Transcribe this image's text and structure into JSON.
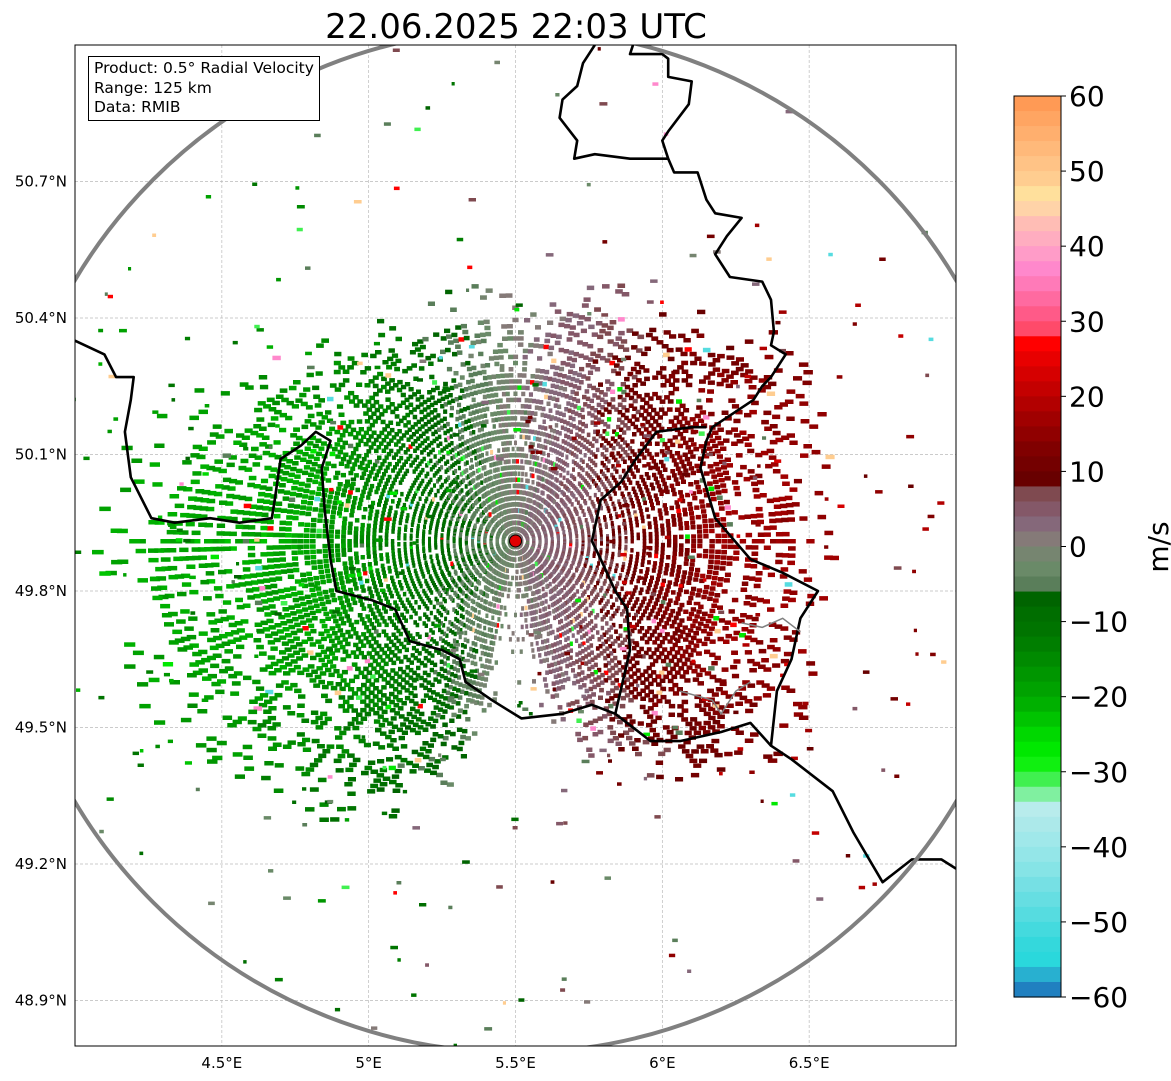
{
  "chart_data": {
    "type": "heatmap",
    "title": "22.06.2025 22:03 UTC",
    "xlabel": "",
    "ylabel": "",
    "xlim": [
      4.0,
      7.0
    ],
    "ylim": [
      48.8,
      51.0
    ],
    "grid": true,
    "x_ticks": [
      {
        "value": 4.5,
        "label": "4.5°E"
      },
      {
        "value": 5.0,
        "label": "5°E"
      },
      {
        "value": 5.5,
        "label": "5.5°E"
      },
      {
        "value": 6.0,
        "label": "6°E"
      },
      {
        "value": 6.5,
        "label": "6.5°E"
      }
    ],
    "y_ticks": [
      {
        "value": 50.7,
        "label": "50.7°N"
      },
      {
        "value": 50.4,
        "label": "50.4°N"
      },
      {
        "value": 50.1,
        "label": "50.1°N"
      },
      {
        "value": 49.8,
        "label": "49.8°N"
      },
      {
        "value": 49.5,
        "label": "49.5°N"
      },
      {
        "value": 49.2,
        "label": "49.2°N"
      },
      {
        "value": 48.9,
        "label": "48.9°N"
      }
    ],
    "info_box": [
      "Product: 0.5° Radial Velocity",
      "Range: 125 km",
      "Data: RMIB"
    ],
    "radar_site": {
      "lon": 5.5,
      "lat": 49.91
    },
    "range_km": 125,
    "colorbar": {
      "label": "m/s",
      "range": [
        -60,
        60
      ],
      "ticks": [
        {
          "value": 60,
          "label": "60"
        },
        {
          "value": 50,
          "label": "50"
        },
        {
          "value": 40,
          "label": "40"
        },
        {
          "value": 30,
          "label": "30"
        },
        {
          "value": 20,
          "label": "20"
        },
        {
          "value": 10,
          "label": "10"
        },
        {
          "value": 0,
          "label": "0"
        },
        {
          "value": -10,
          "label": "−10"
        },
        {
          "value": -20,
          "label": "−20"
        },
        {
          "value": -30,
          "label": "−30"
        },
        {
          "value": -40,
          "label": "−40"
        },
        {
          "value": -50,
          "label": "−50"
        },
        {
          "value": -60,
          "label": "−60"
        }
      ],
      "bins": [
        [
          58,
          60,
          "#ff9a55"
        ],
        [
          56,
          58,
          "#ffa562"
        ],
        [
          54,
          56,
          "#ffaf6e"
        ],
        [
          52,
          54,
          "#ffb97a"
        ],
        [
          50,
          52,
          "#ffc386"
        ],
        [
          48,
          50,
          "#ffcd90"
        ],
        [
          46,
          48,
          "#ffe09c"
        ],
        [
          44,
          46,
          "#ffd3a8"
        ],
        [
          42,
          44,
          "#ffbdb5"
        ],
        [
          40,
          42,
          "#ffadc0"
        ],
        [
          38,
          40,
          "#ff9cc8"
        ],
        [
          36,
          38,
          "#ff88cc"
        ],
        [
          34,
          36,
          "#ff7ab8"
        ],
        [
          32,
          34,
          "#ff6aa0"
        ],
        [
          30,
          32,
          "#ff5a88"
        ],
        [
          28,
          30,
          "#ff4a6a"
        ],
        [
          26,
          28,
          "#ff0000"
        ],
        [
          24,
          26,
          "#e80000"
        ],
        [
          22,
          24,
          "#d60000"
        ],
        [
          20,
          22,
          "#c40000"
        ],
        [
          18,
          20,
          "#b20000"
        ],
        [
          16,
          18,
          "#a00000"
        ],
        [
          14,
          16,
          "#900000"
        ],
        [
          12,
          14,
          "#800000"
        ],
        [
          10,
          12,
          "#740000"
        ],
        [
          8,
          10,
          "#680000"
        ],
        [
          6,
          8,
          "#7f4a50"
        ],
        [
          4,
          6,
          "#845868"
        ],
        [
          2,
          4,
          "#85687a"
        ],
        [
          0,
          2,
          "#857a78"
        ],
        [
          -2,
          0,
          "#768570"
        ],
        [
          -4,
          -2,
          "#6a8a68"
        ],
        [
          -6,
          -4,
          "#5a7e5a"
        ],
        [
          -8,
          -6,
          "#006400"
        ],
        [
          -10,
          -8,
          "#006e00"
        ],
        [
          -12,
          -10,
          "#007400"
        ],
        [
          -14,
          -12,
          "#007e00"
        ],
        [
          -16,
          -14,
          "#008a00"
        ],
        [
          -18,
          -16,
          "#009600"
        ],
        [
          -20,
          -18,
          "#00a200"
        ],
        [
          -22,
          -20,
          "#00b000"
        ],
        [
          -24,
          -22,
          "#00c400"
        ],
        [
          -26,
          -24,
          "#00d800"
        ],
        [
          -28,
          -26,
          "#00e800"
        ],
        [
          -30,
          -28,
          "#10f010"
        ],
        [
          -32,
          -30,
          "#40f050"
        ],
        [
          -34,
          -32,
          "#80f0a0"
        ],
        [
          -36,
          -34,
          "#b8ecec"
        ],
        [
          -38,
          -36,
          "#ace9ea"
        ],
        [
          -40,
          -38,
          "#a0e8ea"
        ],
        [
          -42,
          -40,
          "#94e6e8"
        ],
        [
          -44,
          -42,
          "#86e4e6"
        ],
        [
          -46,
          -44,
          "#76e0e4"
        ],
        [
          -48,
          -46,
          "#66dee2"
        ],
        [
          -50,
          -48,
          "#56dce0"
        ],
        [
          -52,
          -50,
          "#44dade"
        ],
        [
          -54,
          -52,
          "#34d8dc"
        ],
        [
          -56,
          -54,
          "#2ad8dc"
        ],
        [
          -58,
          -56,
          "#28b0d0"
        ],
        [
          -60,
          -58,
          "#2080c0"
        ]
      ]
    },
    "echo_field": {
      "velocity_model": "v = vmax * sin(azimuth)",
      "vmax_mps": 20,
      "extent_km_by_azimuth": [
        [
          0,
          55
        ],
        [
          30,
          60
        ],
        [
          45,
          68
        ],
        [
          60,
          75
        ],
        [
          90,
          68
        ],
        [
          120,
          72
        ],
        [
          135,
          72
        ],
        [
          150,
          60
        ],
        [
          165,
          45
        ],
        [
          180,
          30
        ],
        [
          195,
          55
        ],
        [
          210,
          72
        ],
        [
          225,
          75
        ],
        [
          240,
          85
        ],
        [
          255,
          88
        ],
        [
          270,
          90
        ],
        [
          285,
          85
        ],
        [
          300,
          70
        ],
        [
          315,
          62
        ],
        [
          330,
          55
        ],
        [
          345,
          55
        ],
        [
          360,
          55
        ]
      ]
    },
    "borders": [
      {
        "style": "country",
        "coords": [
          [
            4.0,
            50.35
          ],
          [
            4.1,
            50.32
          ],
          [
            4.14,
            50.27
          ],
          [
            4.2,
            50.27
          ],
          [
            4.19,
            50.22
          ],
          [
            4.17,
            50.15
          ],
          [
            4.19,
            50.05
          ],
          [
            4.26,
            49.96
          ],
          [
            4.34,
            49.95
          ],
          [
            4.46,
            49.96
          ],
          [
            4.56,
            49.95
          ],
          [
            4.67,
            49.96
          ],
          [
            4.68,
            50.0
          ],
          [
            4.7,
            50.09
          ],
          [
            4.77,
            50.12
          ],
          [
            4.82,
            50.15
          ],
          [
            4.87,
            50.13
          ],
          [
            4.84,
            50.07
          ],
          [
            4.85,
            49.98
          ],
          [
            4.87,
            49.87
          ],
          [
            4.89,
            49.8
          ],
          [
            5.01,
            49.78
          ],
          [
            5.09,
            49.76
          ],
          [
            5.14,
            49.69
          ],
          [
            5.25,
            49.67
          ],
          [
            5.31,
            49.65
          ],
          [
            5.33,
            49.6
          ],
          [
            5.42,
            49.56
          ],
          [
            5.52,
            49.52
          ],
          [
            5.66,
            49.53
          ],
          [
            5.76,
            49.55
          ],
          [
            5.84,
            49.53
          ],
          [
            5.96,
            49.47
          ],
          [
            6.06,
            49.47
          ],
          [
            6.2,
            49.49
          ],
          [
            6.3,
            49.51
          ],
          [
            6.37,
            49.46
          ],
          [
            6.44,
            49.43
          ],
          [
            6.58,
            49.36
          ],
          [
            6.65,
            49.27
          ],
          [
            6.75,
            49.16
          ],
          [
            6.85,
            49.21
          ],
          [
            6.95,
            49.21
          ],
          [
            7.0,
            49.19
          ]
        ]
      },
      {
        "style": "country",
        "coords": [
          [
            5.77,
            51.0
          ],
          [
            5.73,
            50.96
          ],
          [
            5.71,
            50.91
          ],
          [
            5.66,
            50.88
          ],
          [
            5.65,
            50.84
          ],
          [
            5.71,
            50.79
          ],
          [
            5.7,
            50.75
          ],
          [
            5.77,
            50.76
          ],
          [
            5.89,
            50.75
          ],
          [
            6.02,
            50.75
          ]
        ]
      },
      {
        "style": "country",
        "coords": [
          [
            5.9,
            51.0
          ],
          [
            5.89,
            50.98
          ],
          [
            6.0,
            50.98
          ],
          [
            6.02,
            50.97
          ],
          [
            6.02,
            50.93
          ],
          [
            6.1,
            50.92
          ],
          [
            6.09,
            50.87
          ],
          [
            6.02,
            50.81
          ],
          [
            6.0,
            50.79
          ],
          [
            6.02,
            50.75
          ],
          [
            6.04,
            50.72
          ],
          [
            6.12,
            50.72
          ],
          [
            6.15,
            50.66
          ],
          [
            6.18,
            50.63
          ],
          [
            6.27,
            50.62
          ],
          [
            6.22,
            50.58
          ],
          [
            6.18,
            50.54
          ],
          [
            6.23,
            50.49
          ],
          [
            6.34,
            50.48
          ],
          [
            6.37,
            50.44
          ],
          [
            6.38,
            50.37
          ],
          [
            6.37,
            50.34
          ],
          [
            6.42,
            50.32
          ],
          [
            6.37,
            50.27
          ],
          [
            6.34,
            50.25
          ],
          [
            6.31,
            50.22
          ],
          [
            6.17,
            50.16
          ],
          [
            6.15,
            50.13
          ],
          [
            6.13,
            50.07
          ],
          [
            6.18,
            49.96
          ],
          [
            6.3,
            49.87
          ],
          [
            6.41,
            49.84
          ],
          [
            6.53,
            49.8
          ],
          [
            6.47,
            49.74
          ],
          [
            6.44,
            49.65
          ],
          [
            6.39,
            49.58
          ],
          [
            6.37,
            49.46
          ]
        ]
      },
      {
        "style": "country",
        "coords": [
          [
            6.15,
            50.16
          ],
          [
            6.1,
            50.16
          ],
          [
            5.98,
            50.15
          ],
          [
            5.91,
            50.09
          ],
          [
            5.86,
            50.04
          ],
          [
            5.79,
            50.0
          ],
          [
            5.76,
            49.91
          ],
          [
            5.79,
            49.87
          ],
          [
            5.84,
            49.8
          ],
          [
            5.88,
            49.76
          ],
          [
            5.89,
            49.67
          ],
          [
            5.84,
            49.53
          ]
        ]
      },
      {
        "style": "state",
        "coords": [
          [
            6.27,
            49.73
          ],
          [
            6.34,
            49.72
          ],
          [
            6.41,
            49.74
          ],
          [
            6.47,
            49.71
          ]
        ]
      },
      {
        "style": "state",
        "coords": [
          [
            6.06,
            49.58
          ],
          [
            6.17,
            49.56
          ],
          [
            6.2,
            49.53
          ],
          [
            6.25,
            49.58
          ],
          [
            6.3,
            49.6
          ]
        ]
      }
    ]
  }
}
